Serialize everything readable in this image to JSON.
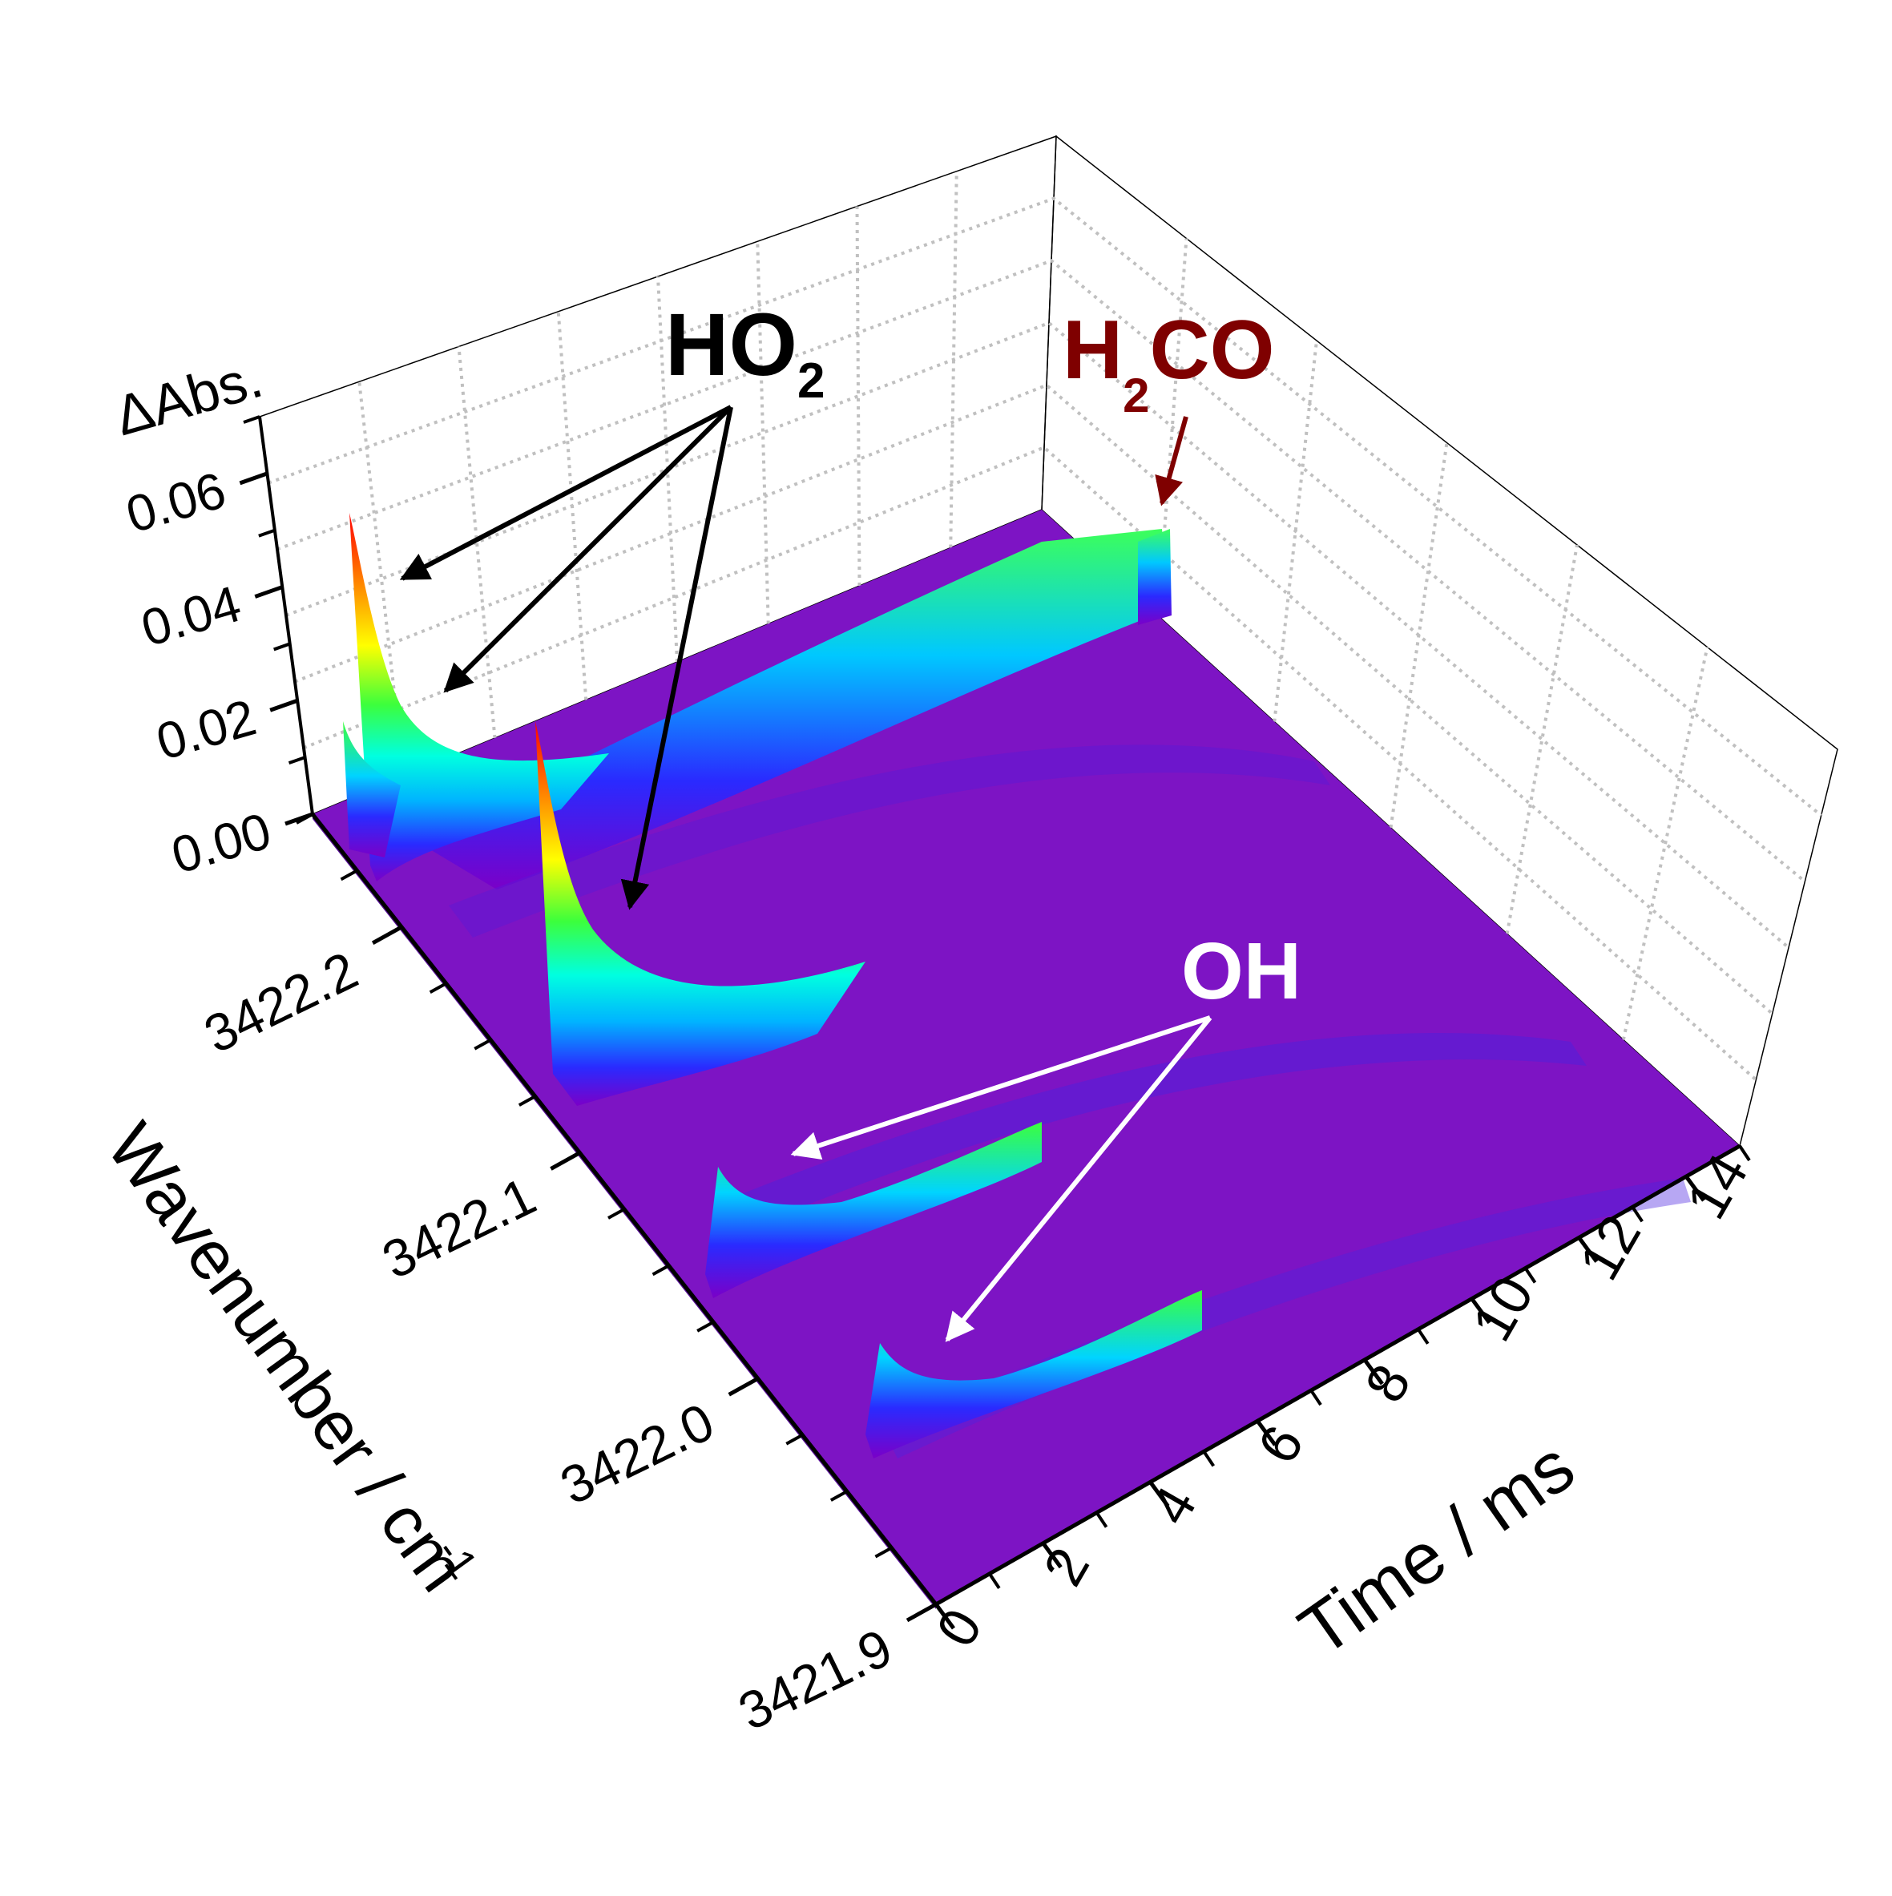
{
  "chart_data": {
    "type": "surface3d",
    "title": "",
    "axes": {
      "z": {
        "label": "ΔAbs.",
        "ticks": [
          "0.00",
          "0.02",
          "0.04",
          "0.06"
        ],
        "range": [
          0,
          0.07
        ]
      },
      "y": {
        "label": "Wavenumber / cm",
        "label_exponent": "-1",
        "ticks": [
          "3422.2",
          "3422.1",
          "3422.0",
          "3421.9"
        ],
        "range": [
          3421.9,
          3422.25
        ]
      },
      "x": {
        "label": "Time / ms",
        "ticks": [
          "0",
          "2",
          "4",
          "6",
          "8",
          "10",
          "12",
          "14"
        ],
        "range": [
          0,
          15
        ]
      }
    },
    "grid": true,
    "colormap": [
      "#7a00c8",
      "#2a2aff",
      "#00b4ff",
      "#00ffe0",
      "#3cff3c",
      "#ffff00",
      "#ff8c00",
      "#ff0000"
    ],
    "surface_color": "#7d14c4",
    "peaks": [
      {
        "species": "HO2",
        "wavenumber": 3422.22,
        "peak_absorbance": 0.061,
        "baseline": 0.0
      },
      {
        "species": "HO2",
        "wavenumber": 3422.215,
        "peak_absorbance": 0.018,
        "baseline": 0.0
      },
      {
        "species": "HO2",
        "wavenumber": 3422.15,
        "peak_absorbance": 0.061,
        "baseline": 0.0
      },
      {
        "species": "H2CO",
        "wavenumber": 3422.205,
        "peak_absorbance": 0.004,
        "baseline": 0.012
      },
      {
        "species": "OH",
        "wavenumber": 3422.06,
        "peak_absorbance": 0.012,
        "baseline": 0.0
      },
      {
        "species": "OH",
        "wavenumber": 3421.99,
        "peak_absorbance": 0.012,
        "baseline": 0.0
      }
    ],
    "annotations": [
      {
        "text": "HO",
        "subscript": "2",
        "color": "#000000"
      },
      {
        "text": "H",
        "subscript": "2",
        "suffix": "CO",
        "color": "#7f0000"
      },
      {
        "text": "OH",
        "color": "#ffffff"
      }
    ]
  }
}
